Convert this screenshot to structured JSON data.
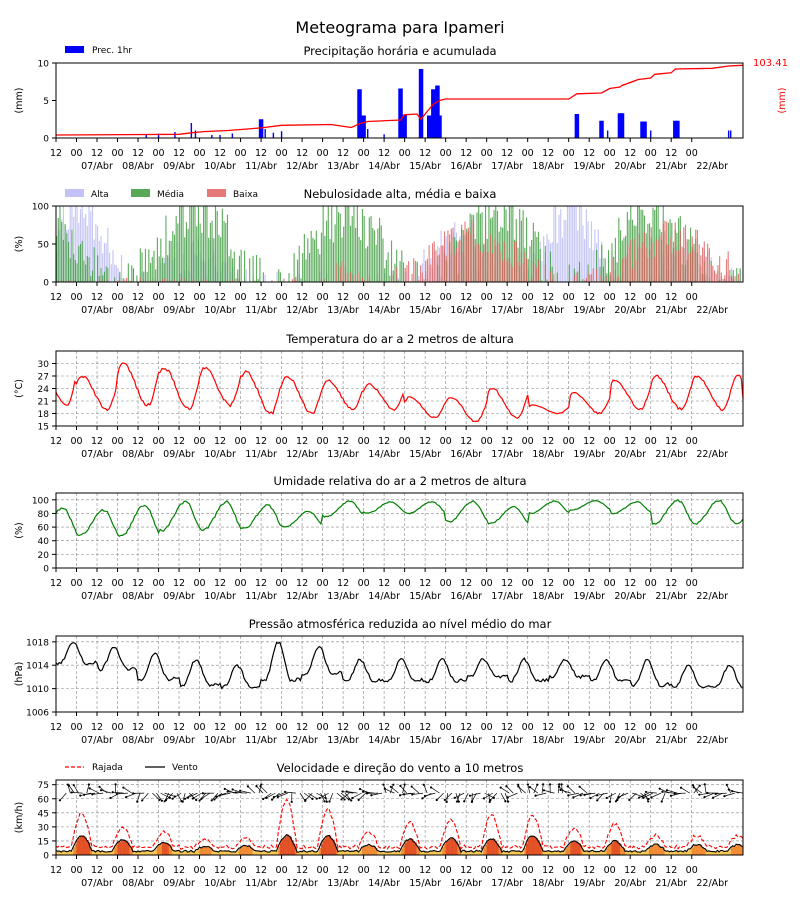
{
  "title": "Meteograma para Ipameri",
  "x_axis": {
    "hour_ticks": [
      "12",
      "00",
      "12",
      "00",
      "12",
      "00",
      "12",
      "00",
      "12",
      "00",
      "12",
      "00",
      "12",
      "00",
      "12",
      "00",
      "12",
      "00",
      "12",
      "00",
      "12",
      "00",
      "12",
      "00",
      "12",
      "00",
      "12",
      "00",
      "12",
      "00",
      "12",
      "00"
    ],
    "day_labels": [
      "07/Abr",
      "08/Abr",
      "09/Abr",
      "10/Abr",
      "11/Abr",
      "12/Abr",
      "13/Abr",
      "14/Abr",
      "15/Abr",
      "16/Abr",
      "17/Abr",
      "18/Abr",
      "19/Abr",
      "20/Abr",
      "21/Abr",
      "22/Abr"
    ]
  },
  "colors": {
    "precip_bar": "#0000ff",
    "precip_line": "#ff0000",
    "cloud_high": "#b7b7f5",
    "cloud_mid": "#3a9a3a",
    "cloud_low": "#e06060",
    "temperature": "#ff0000",
    "humidity": "#008000",
    "pressure": "#000000",
    "gust": "#ff0000",
    "wind": "#000000",
    "grid": "#888888"
  },
  "chart_data": [
    {
      "type": "bar",
      "title": "Precipitação horária e acumulada",
      "ylabel": "(mm)",
      "ylabel_right": "(mm)",
      "ylim": [
        0,
        10
      ],
      "yticks": [
        "0",
        "5",
        "10"
      ],
      "legend": [
        "Prec. 1hr"
      ],
      "legend_position": "top-left",
      "accumulated_total_label": "103.41",
      "hourly_events_day_mm": [
        [
          2.2,
          0.5
        ],
        [
          2.5,
          0.6
        ],
        [
          2.9,
          0.8
        ],
        [
          3.3,
          2.0
        ],
        [
          3.4,
          1.0
        ],
        [
          3.8,
          0.4
        ],
        [
          4.0,
          0.4
        ],
        [
          4.3,
          0.6
        ],
        [
          5.0,
          2.5
        ],
        [
          5.1,
          1.2
        ],
        [
          5.3,
          0.7
        ],
        [
          5.5,
          0.9
        ],
        [
          7.4,
          6.5
        ],
        [
          7.5,
          3.0
        ],
        [
          7.6,
          1.2
        ],
        [
          8.0,
          0.5
        ],
        [
          8.4,
          6.6
        ],
        [
          8.5,
          3.1
        ],
        [
          8.9,
          9.2
        ],
        [
          9.1,
          3.0
        ],
        [
          9.2,
          6.5
        ],
        [
          9.3,
          7.0
        ],
        [
          9.35,
          3.0
        ],
        [
          12.7,
          3.2
        ],
        [
          13.3,
          2.3
        ],
        [
          13.45,
          1.0
        ],
        [
          13.75,
          3.3
        ],
        [
          13.8,
          3.3
        ],
        [
          14.3,
          2.2
        ],
        [
          14.35,
          2.2
        ],
        [
          14.5,
          1.0
        ],
        [
          15.1,
          2.3
        ],
        [
          15.15,
          2.3
        ],
        [
          16.4,
          1.0
        ],
        [
          16.45,
          1.0
        ]
      ],
      "accumulated_series_day_val": [
        [
          0,
          0.4
        ],
        [
          3,
          0.5
        ],
        [
          3.3,
          0.7
        ],
        [
          3.6,
          0.85
        ],
        [
          4.2,
          1.0
        ],
        [
          5.0,
          1.35
        ],
        [
          5.5,
          1.7
        ],
        [
          6.7,
          1.8
        ],
        [
          7.2,
          1.4
        ],
        [
          7.4,
          1.9
        ],
        [
          7.6,
          2.2
        ],
        [
          8.4,
          2.4
        ],
        [
          8.5,
          3.1
        ],
        [
          8.8,
          3.2
        ],
        [
          8.9,
          2.5
        ],
        [
          9.0,
          3.2
        ],
        [
          9.2,
          4.5
        ],
        [
          9.35,
          5.0
        ],
        [
          9.5,
          5.2
        ],
        [
          12.5,
          5.2
        ],
        [
          12.7,
          5.9
        ],
        [
          13.3,
          6.0
        ],
        [
          13.5,
          6.6
        ],
        [
          13.75,
          6.8
        ],
        [
          13.8,
          7.0
        ],
        [
          14.2,
          7.8
        ],
        [
          14.5,
          8.0
        ],
        [
          14.6,
          8.5
        ],
        [
          15.0,
          8.7
        ],
        [
          15.1,
          9.2
        ],
        [
          16.0,
          9.3
        ],
        [
          16.4,
          9.6
        ],
        [
          16.75,
          9.7
        ]
      ]
    },
    {
      "type": "bar",
      "title": "Nebulosidade alta, média e baixa",
      "ylabel": "(%)",
      "ylim": [
        0,
        100
      ],
      "yticks": [
        "0",
        "50",
        "100"
      ],
      "series": [
        {
          "name": "Alta"
        },
        {
          "name": "Média"
        },
        {
          "name": "Baixa"
        }
      ],
      "legend_position": "top-left",
      "seed": 7
    },
    {
      "type": "line",
      "title": "Temperatura do ar a 2 metros de altura",
      "ylabel": "(°C)",
      "ylim": [
        15,
        33
      ],
      "yticks": [
        "15",
        "18",
        "21",
        "24",
        "27",
        "30"
      ],
      "daily_min_max": [
        [
          20,
          29
        ],
        [
          19,
          27
        ],
        [
          20,
          30
        ],
        [
          19,
          29
        ],
        [
          20,
          29
        ],
        [
          18,
          28
        ],
        [
          18,
          27
        ],
        [
          19,
          26
        ],
        [
          19,
          25
        ],
        [
          17,
          22
        ],
        [
          16,
          22
        ],
        [
          17,
          24
        ],
        [
          18,
          20
        ],
        [
          18,
          23
        ],
        [
          19,
          26
        ],
        [
          19,
          27
        ]
      ],
      "last_value": 21.5
    },
    {
      "type": "line",
      "title": "Umidade relativa do ar a 2 metros de altura",
      "ylabel": "(%)",
      "ylim": [
        0,
        110
      ],
      "yticks": [
        "0",
        "20",
        "40",
        "60",
        "80",
        "100"
      ],
      "daily_min_max": [
        [
          50,
          88
        ],
        [
          48,
          85
        ],
        [
          47,
          93
        ],
        [
          55,
          97
        ],
        [
          55,
          97
        ],
        [
          58,
          92
        ],
        [
          60,
          83
        ],
        [
          75,
          98
        ],
        [
          80,
          97
        ],
        [
          80,
          97
        ],
        [
          68,
          98
        ],
        [
          65,
          90
        ],
        [
          80,
          98
        ],
        [
          85,
          99
        ],
        [
          80,
          97
        ],
        [
          65,
          99
        ]
      ]
    },
    {
      "type": "line",
      "title": "Pressão atmosférica reduzida ao nível médio do mar",
      "ylabel": "(hPa)",
      "ylim": [
        1006,
        1019
      ],
      "yticks": [
        "1006",
        "1010",
        "1014",
        "1018"
      ],
      "daily_min_max": [
        [
          1013,
          1018
        ],
        [
          1012,
          1017
        ],
        [
          1010,
          1016
        ],
        [
          1009,
          1015
        ],
        [
          1009,
          1014
        ],
        [
          1009,
          1018
        ],
        [
          1011,
          1017
        ],
        [
          1010,
          1015
        ],
        [
          1010,
          1015
        ],
        [
          1010,
          1015
        ],
        [
          1011,
          1015
        ],
        [
          1010,
          1015
        ],
        [
          1011,
          1015
        ],
        [
          1010,
          1015
        ],
        [
          1009,
          1015
        ],
        [
          1009,
          1014
        ]
      ]
    },
    {
      "type": "line",
      "title": "Velocidade e direção do vento a 10 metros",
      "ylabel": "(km/h)",
      "ylim": [
        0,
        80
      ],
      "yticks": [
        "0",
        "15",
        "30",
        "45",
        "60",
        "75"
      ],
      "series": [
        {
          "name": "Rajada"
        },
        {
          "name": "Vento"
        }
      ],
      "legend_position": "top-left",
      "gust_daily_peak": [
        42,
        28,
        22,
        14,
        16,
        57,
        47,
        22,
        32,
        35,
        40,
        40,
        26,
        30,
        18,
        18
      ],
      "wind_daily_peak": [
        20,
        16,
        12,
        8,
        9,
        20,
        20,
        10,
        16,
        17,
        16,
        20,
        14,
        14,
        10,
        10
      ]
    }
  ]
}
